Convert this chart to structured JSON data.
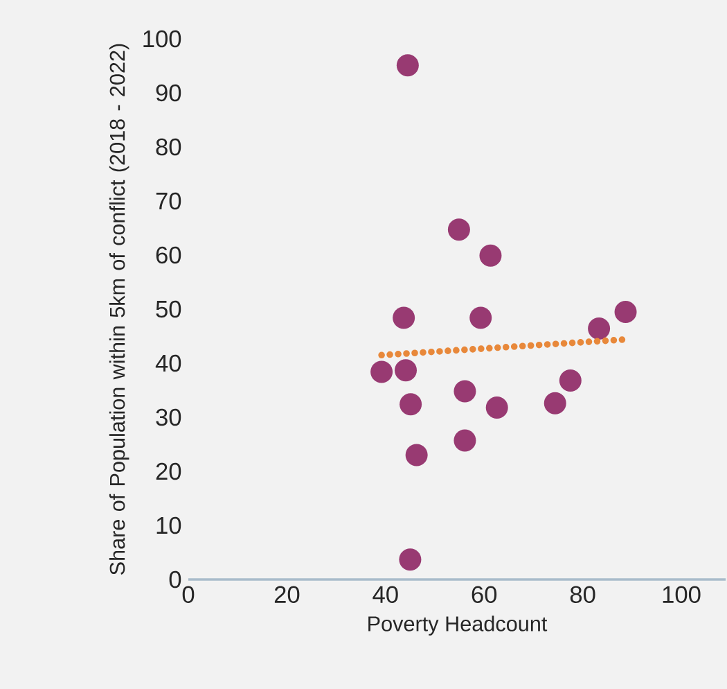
{
  "chart_data": {
    "type": "scatter",
    "xlabel": "Poverty Headcount",
    "ylabel": "Share of Population within 5km of conflict (2018 - 2022)",
    "xlim": [
      0,
      109
    ],
    "ylim": [
      0,
      100
    ],
    "xticks": [
      0,
      20,
      40,
      60,
      80,
      100
    ],
    "yticks": [
      0,
      10,
      20,
      30,
      40,
      50,
      60,
      70,
      80,
      90,
      100
    ],
    "series": [
      {
        "color": "#983a72",
        "marker": "circle",
        "x": [
          44.5,
          54.9,
          61.3,
          43.7,
          59.3,
          88.7,
          83.3,
          39.2,
          44.1,
          77.5,
          56.1,
          45.1,
          62.6,
          74.4,
          56.1,
          46.3,
          45.0
        ],
        "values": [
          95.1,
          64.7,
          59.9,
          48.4,
          48.4,
          49.5,
          46.4,
          38.4,
          38.7,
          36.8,
          34.8,
          32.4,
          31.8,
          32.6,
          25.7,
          23.0,
          3.7
        ]
      },
      {
        "type": "line",
        "color": "#e8883a",
        "line_style": "dotted",
        "marker": "none",
        "x": [
          39.2,
          88.8
        ],
        "values": [
          41.5,
          44.4
        ]
      }
    ]
  }
}
